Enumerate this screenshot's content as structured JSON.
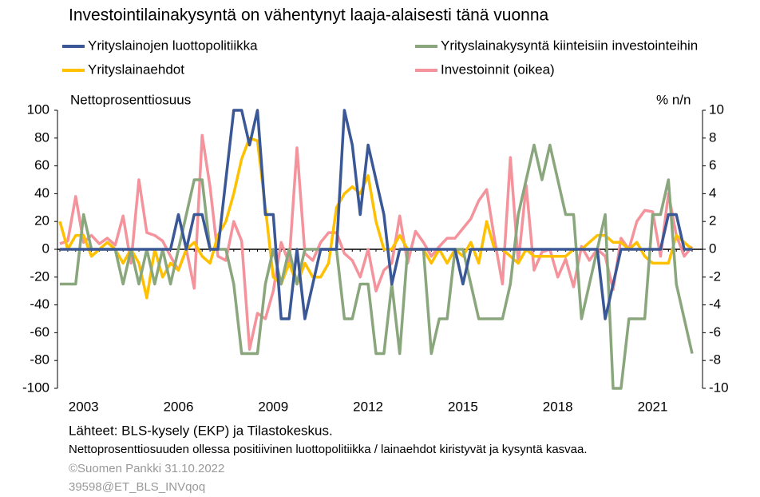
{
  "chart_data": {
    "type": "line",
    "title": "Investointilainakysyntä  on vähentynyt  laaja-alaisesti tänä vuonna",
    "ylabel": "Nettoprosenttiosuus",
    "y2label": "% n/n",
    "categories": [
      null,
      null,
      null,
      "2003",
      null,
      null,
      null,
      null,
      null,
      null,
      null,
      null,
      null,
      null,
      null,
      "2006",
      null,
      null,
      null,
      null,
      null,
      null,
      null,
      null,
      null,
      null,
      null,
      "2009",
      null,
      null,
      null,
      null,
      null,
      null,
      null,
      null,
      null,
      null,
      null,
      "2012",
      null,
      null,
      null,
      null,
      null,
      null,
      null,
      null,
      null,
      null,
      null,
      "2015",
      null,
      null,
      null,
      null,
      null,
      null,
      null,
      null,
      null,
      null,
      null,
      "2018",
      null,
      null,
      null,
      null,
      null,
      null,
      null,
      null,
      null,
      null,
      null,
      "2021",
      null,
      null,
      null,
      null,
      null
    ],
    "series": [
      {
        "name": "Yrityslainojen luottopolitiikka",
        "color": "#3b5896",
        "values": [
          0,
          0,
          0,
          0,
          0,
          0,
          0,
          0,
          0,
          0,
          0,
          0,
          0,
          0,
          0,
          25,
          0,
          25,
          25,
          0,
          0,
          50,
          100,
          100,
          75,
          100,
          25,
          25,
          -50,
          -50,
          0,
          -50,
          -25,
          0,
          0,
          0,
          100,
          75,
          25,
          75,
          50,
          25,
          -25,
          0,
          0,
          0,
          0,
          0,
          0,
          0,
          0,
          -25,
          0,
          0,
          0,
          0,
          0,
          0,
          0,
          0,
          0,
          0,
          0,
          0,
          0,
          0,
          0,
          0,
          0,
          -50,
          -25,
          0,
          0,
          0,
          0,
          0,
          0,
          25,
          25,
          0,
          0
        ]
      },
      {
        "name": "Yrityslainakysyntä kiinteisiin investointeihin",
        "color": "#8aa67c",
        "values": [
          -25,
          -25,
          -25,
          25,
          0,
          0,
          0,
          0,
          -25,
          0,
          -25,
          0,
          -25,
          0,
          -25,
          0,
          25,
          50,
          50,
          0,
          0,
          0,
          -25,
          -75,
          -75,
          -75,
          -25,
          0,
          -25,
          0,
          -25,
          0,
          0,
          0,
          0,
          0,
          -50,
          -50,
          -25,
          -25,
          -75,
          -75,
          -25,
          -75,
          0,
          0,
          0,
          -75,
          -50,
          -50,
          0,
          0,
          -25,
          -50,
          -50,
          -50,
          -50,
          -25,
          25,
          50,
          75,
          50,
          75,
          50,
          25,
          25,
          -50,
          -25,
          0,
          25,
          -100,
          -100,
          -50,
          -50,
          -50,
          25,
          25,
          50,
          -25,
          -50,
          -75
        ]
      },
      {
        "name": "Yrityslainaehdot",
        "color": "#ffc000",
        "values": [
          20,
          0,
          10,
          10,
          -5,
          0,
          5,
          0,
          -10,
          0,
          -10,
          -35,
          0,
          -20,
          -10,
          -15,
          0,
          5,
          -5,
          -10,
          10,
          20,
          40,
          65,
          80,
          78,
          30,
          -20,
          -25,
          -10,
          -25,
          -10,
          -20,
          -20,
          -10,
          30,
          40,
          45,
          40,
          53,
          20,
          0,
          0,
          10,
          0,
          0,
          0,
          -10,
          0,
          -10,
          0,
          -5,
          5,
          -10,
          20,
          0,
          0,
          -5,
          -10,
          0,
          -5,
          -5,
          -5,
          -5,
          -5,
          0,
          0,
          5,
          10,
          10,
          5,
          5,
          0,
          5,
          -5,
          -10,
          -10,
          -10,
          10,
          5,
          0
        ]
      },
      {
        "name": "Investoinnit (oikea)",
        "color": "#f4939c",
        "axis": "y2",
        "values": [
          0.4,
          0.6,
          3.8,
          0.5,
          1,
          0.4,
          0.8,
          0.3,
          2.4,
          -1,
          5,
          1.2,
          1,
          0.6,
          -0.5,
          -1.5,
          0,
          -2.8,
          8.2,
          4.5,
          -0.5,
          -0.8,
          2,
          0.6,
          -7.2,
          -4.6,
          -5,
          -3,
          0.5,
          -1,
          7.3,
          -0.3,
          -0.8,
          0.5,
          1.2,
          1.2,
          -0.3,
          -0.8,
          -2,
          0,
          -3,
          -1.5,
          -1,
          2.4,
          -1,
          1.3,
          0.5,
          -0.5,
          0.2,
          0.8,
          0.8,
          1.5,
          2.2,
          3.5,
          4.3,
          0.7,
          -2.5,
          6.6,
          -1,
          4.6,
          -1.5,
          -0.2,
          0,
          -2,
          -0.7,
          -2.7,
          0.2,
          -0.8,
          0,
          -0.5,
          -2.9,
          0.8,
          0,
          2,
          2.8,
          2.7,
          -0.5,
          4,
          1,
          -0.5,
          0.2
        ]
      }
    ],
    "ylim": [
      -100,
      100
    ],
    "yticks": [
      -100,
      -80,
      -60,
      -40,
      -20,
      0,
      20,
      40,
      60,
      80,
      100
    ],
    "y2lim": [
      -10,
      10
    ],
    "y2ticks": [
      -10,
      -8,
      -6,
      -4,
      -2,
      0,
      2,
      4,
      6,
      8,
      10
    ],
    "notes": [
      "Lähteet: BLS-kysely (EKP) ja Tilastokeskus.",
      "Nettoprosenttiosuuden ollessa positiivinen luottopolitiikka / lainaehdot kiristyvät ja kysyntä kasvaa.",
      "©Suomen  Pankki 31.10.2022",
      "39598@ET_BLS_INVqoq"
    ]
  }
}
